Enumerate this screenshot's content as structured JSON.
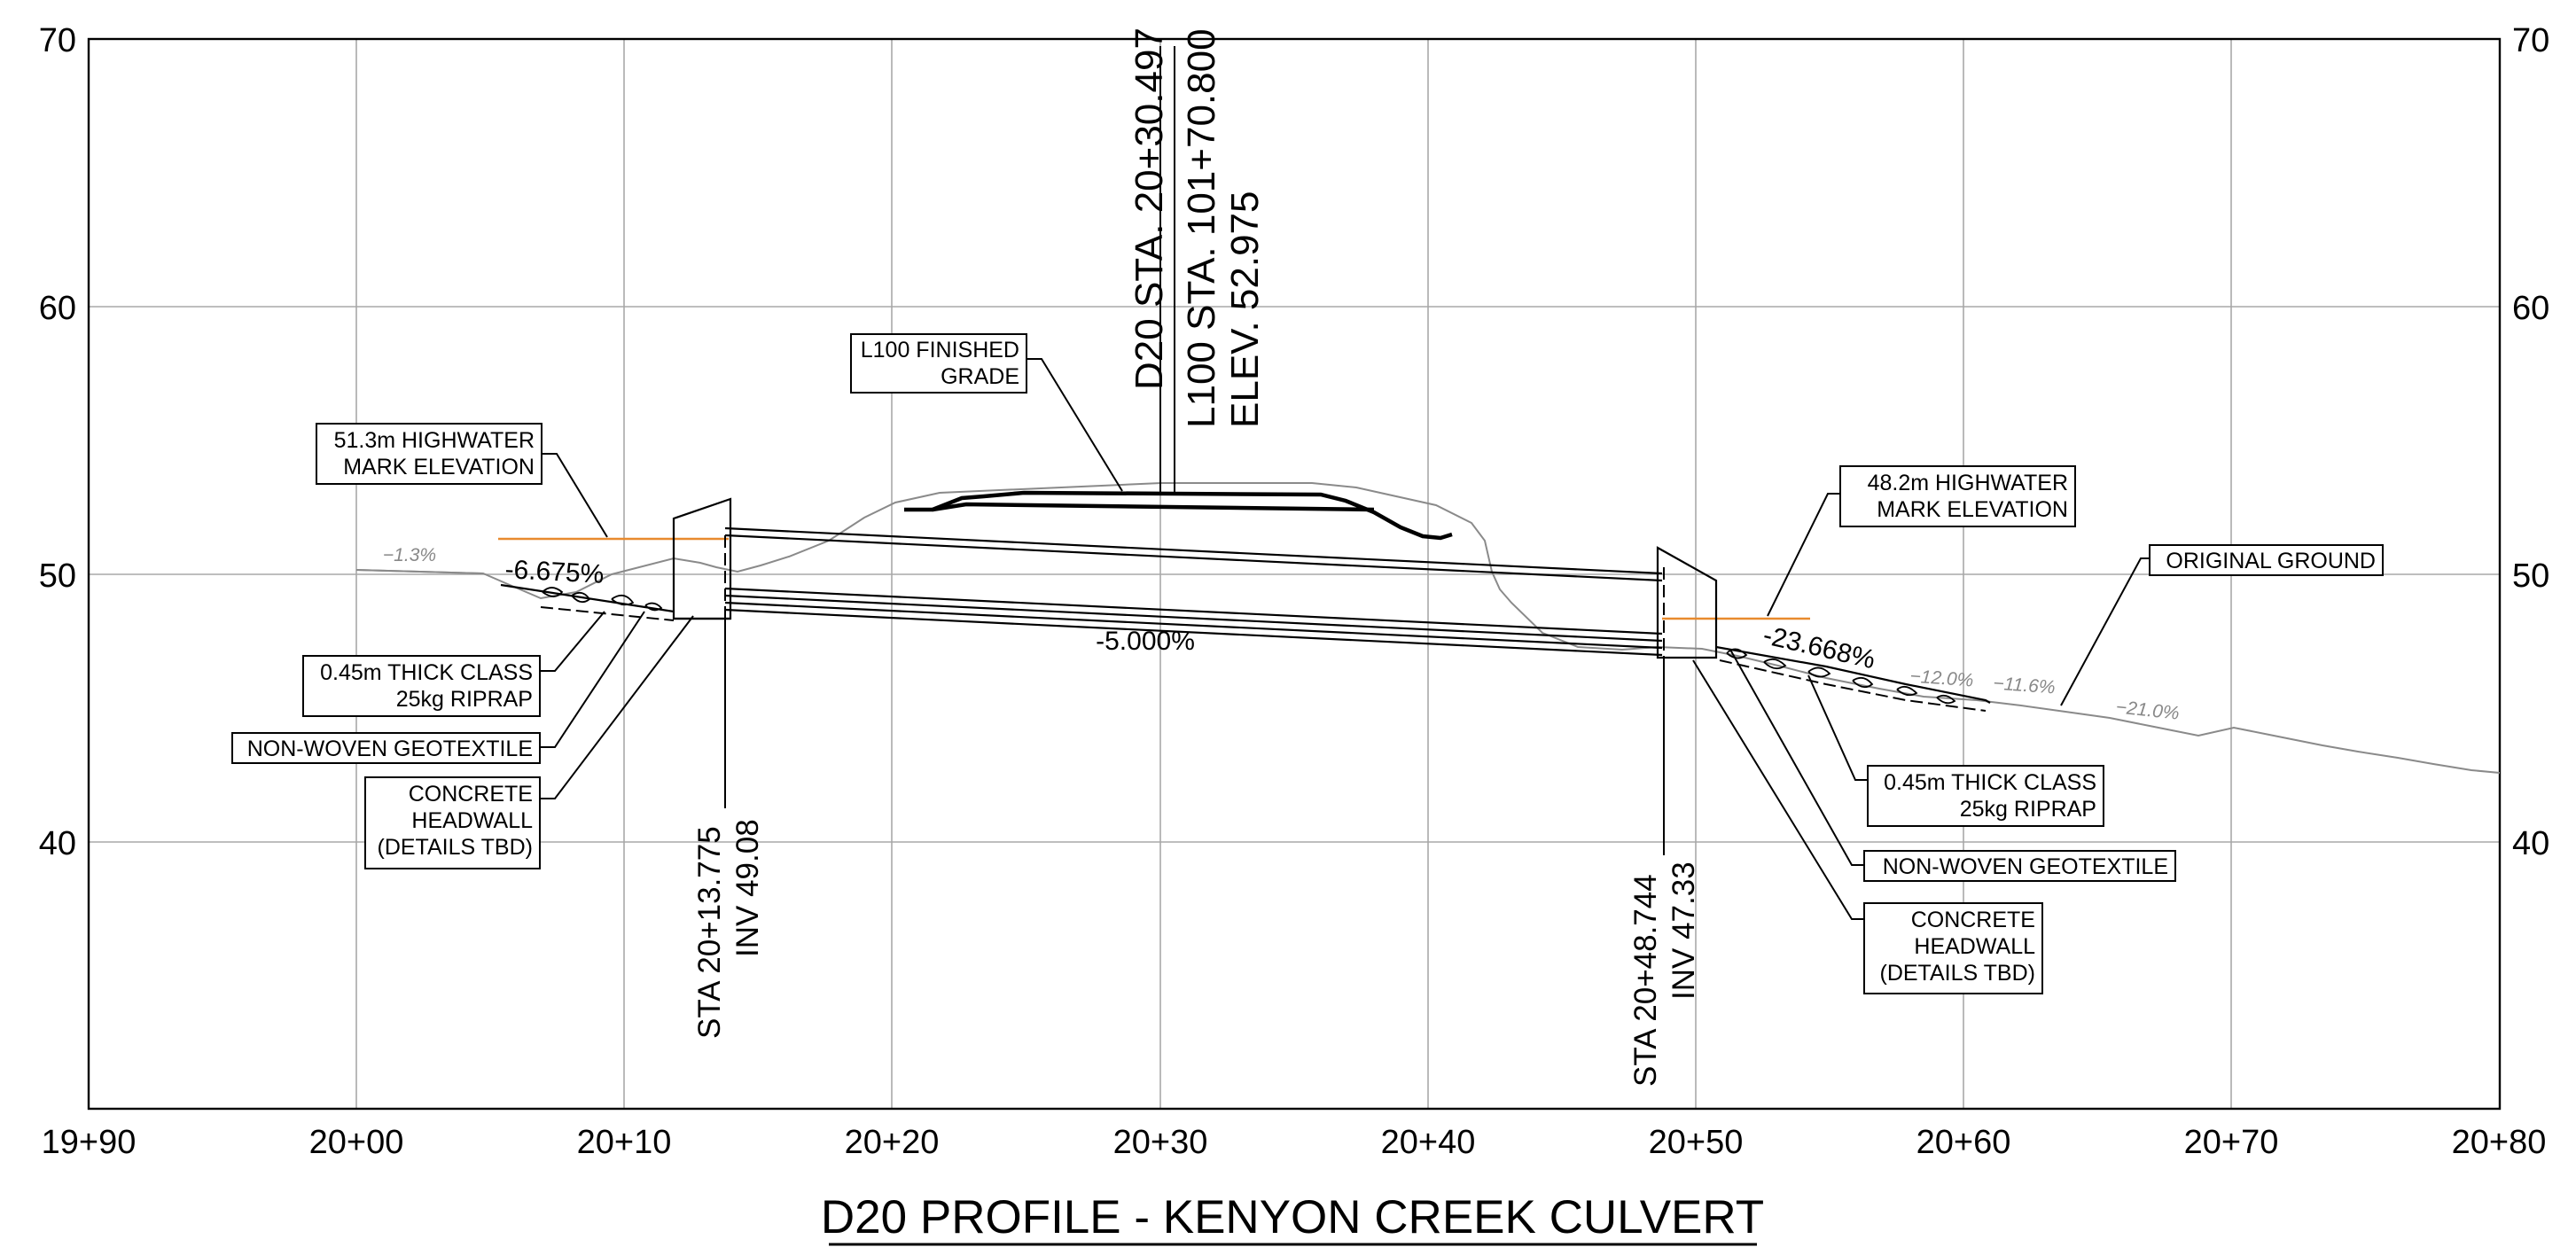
{
  "title": "D20 PROFILE - KENYON CREEK CULVERT",
  "axes": {
    "y_ticks": [
      "70",
      "60",
      "50",
      "40"
    ],
    "x_ticks": [
      "19+90",
      "20+00",
      "20+10",
      "20+20",
      "20+30",
      "20+40",
      "20+50",
      "20+60",
      "20+70",
      "20+80"
    ]
  },
  "centerline": {
    "line1": "D20 STA. 20+30.497",
    "line2": "L100 STA. 101+70.800",
    "line3": "ELEV. 52.975"
  },
  "inlet": {
    "station_line1": "STA  20+13.775",
    "station_line2": "INV 49.08"
  },
  "outlet": {
    "station_line1": "STA  20+48.744",
    "station_line2": "INV 47.33"
  },
  "grades": {
    "culvert": "-5.000%",
    "inlet_slope": "-6.675%",
    "outlet_slope": "-23.668%",
    "ground_left": "−1.3%",
    "ground_right_1": "−12.0%",
    "ground_right_2": "−11.6%",
    "ground_right_3": "−21.0%"
  },
  "callouts": {
    "finished_grade": [
      "L100 FINISHED",
      "GRADE"
    ],
    "highwater_left": [
      "51.3m HIGHWATER",
      "MARK ELEVATION"
    ],
    "highwater_right": [
      "48.2m HIGHWATER",
      "MARK ELEVATION"
    ],
    "original_ground": "ORIGINAL GROUND",
    "riprap_left": [
      "0.45m THICK CLASS",
      "25kg RIPRAP"
    ],
    "geotextile_left": "NON-WOVEN GEOTEXTILE",
    "headwall_left": [
      "CONCRETE",
      "HEADWALL",
      "(DETAILS TBD)"
    ],
    "riprap_right": [
      "0.45m THICK CLASS",
      "25kg RIPRAP"
    ],
    "geotextile_right": "NON-WOVEN GEOTEXTILE",
    "headwall_right": [
      "CONCRETE",
      "HEADWALL",
      "(DETAILS TBD)"
    ]
  },
  "colors": {
    "highwater": "#e88a2e",
    "grid": "#a8a8a8",
    "original_ground": "#8a8a8a"
  }
}
